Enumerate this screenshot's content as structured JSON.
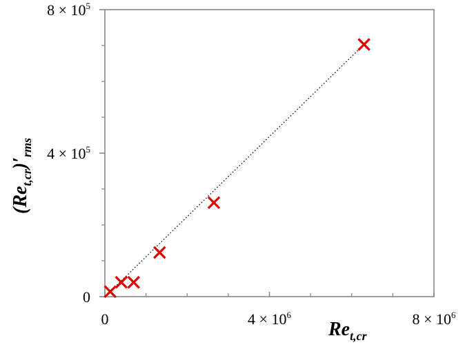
{
  "chart_data": {
    "type": "scatter",
    "xlim": [
      0,
      8000000
    ],
    "ylim": [
      0,
      800000
    ],
    "x_ticks": [
      {
        "value": 0,
        "mantissa": "0",
        "exponent": ""
      },
      {
        "value": 4000000,
        "mantissa": "4 × 10",
        "exponent": "6"
      },
      {
        "value": 8000000,
        "mantissa": "8 × 10",
        "exponent": "6"
      }
    ],
    "y_ticks": [
      {
        "value": 0,
        "mantissa": "0",
        "exponent": ""
      },
      {
        "value": 400000,
        "mantissa": "4 × 10",
        "exponent": "5"
      },
      {
        "value": 800000,
        "mantissa": "8 × 10",
        "exponent": "5"
      }
    ],
    "minor_x_ticks": [
      1000000,
      2000000,
      3000000,
      5000000,
      6000000,
      7000000
    ],
    "minor_y_ticks": [
      100000,
      200000,
      300000,
      500000,
      600000,
      700000
    ],
    "xlabel": {
      "base": "Re",
      "sub": "t,cr"
    },
    "ylabel": {
      "pre": "(",
      "base": "Re",
      "sub": "t,cr",
      "post": ")′",
      "sub2": "rms"
    },
    "grid": false,
    "marker_color": "#e00000",
    "trendline_color": "#000000",
    "points": [
      {
        "x": 130000,
        "y": 14000
      },
      {
        "x": 400000,
        "y": 40000
      },
      {
        "x": 700000,
        "y": 40000
      },
      {
        "x": 1330000,
        "y": 123000
      },
      {
        "x": 2650000,
        "y": 262000
      },
      {
        "x": 6300000,
        "y": 703000
      }
    ],
    "trendline": {
      "x": [
        130000,
        6300000
      ],
      "y": [
        14000,
        703000
      ]
    }
  }
}
